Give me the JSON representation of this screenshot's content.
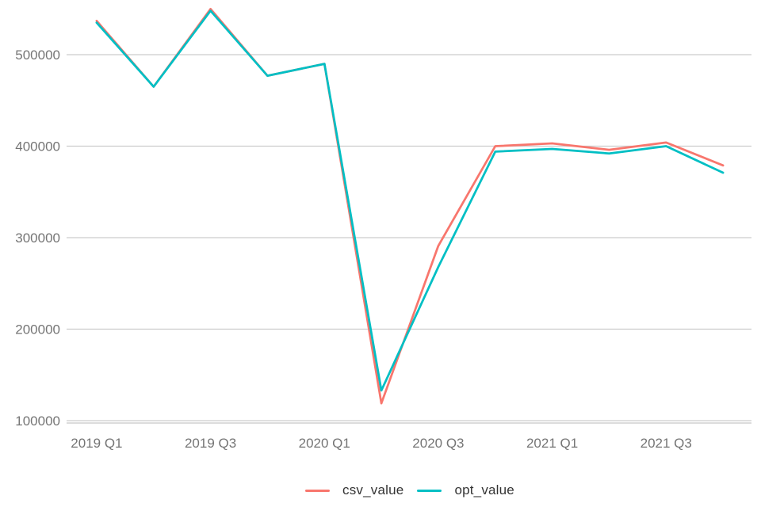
{
  "chart_data": {
    "type": "line",
    "title": "",
    "xlabel": "",
    "ylabel": "",
    "categories": [
      "2019 Q1",
      "2019 Q2",
      "2019 Q3",
      "2019 Q4",
      "2020 Q1",
      "2020 Q2",
      "2020 Q3",
      "2020 Q4",
      "2021 Q1",
      "2021 Q2",
      "2021 Q3",
      "2021 Q4"
    ],
    "x_tick_labels": [
      "2019 Q1",
      "2019 Q3",
      "2020 Q1",
      "2020 Q3",
      "2021 Q1",
      "2021 Q3"
    ],
    "y_ticks": [
      100000,
      200000,
      300000,
      400000,
      500000
    ],
    "y_tick_labels": [
      "100000",
      "200000",
      "300000",
      "400000",
      "500000"
    ],
    "ylim": [
      97000,
      553000
    ],
    "grid": "horizontal-only",
    "legend_position": "bottom-center",
    "series": [
      {
        "name": "csv_value",
        "color": "#f8766d",
        "values": [
          537000,
          465000,
          550000,
          477000,
          490000,
          119000,
          291000,
          400000,
          403000,
          396000,
          404000,
          379000
        ]
      },
      {
        "name": "opt_value",
        "color": "#00bfc4",
        "values": [
          535000,
          465000,
          548000,
          477000,
          490000,
          133000,
          268000,
          394000,
          397000,
          392000,
          400000,
          371000
        ]
      }
    ]
  },
  "styles": {
    "background": "#ffffff",
    "grid_color": "#cccccc",
    "axis_line_color": "#c7c7c7",
    "axis_label_color": "#757575",
    "legend_text_color": "#333333"
  }
}
